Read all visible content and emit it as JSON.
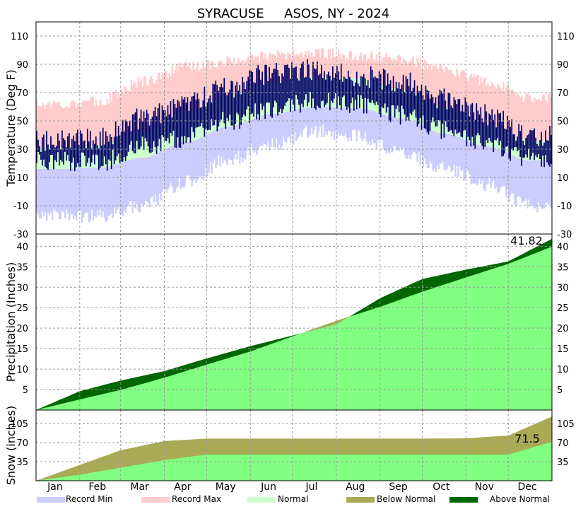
{
  "chart_data": {
    "type": "area",
    "title": "SYRACUSE     ASOS, NY - 2024",
    "months": [
      "Jan",
      "Feb",
      "Mar",
      "Apr",
      "May",
      "Jun",
      "Jul",
      "Aug",
      "Sep",
      "Oct",
      "Nov",
      "Dec"
    ],
    "legend": [
      {
        "label": "Record Min",
        "color": "#ccccff"
      },
      {
        "label": "Record Max",
        "color": "#ffcccc"
      },
      {
        "label": "Normal",
        "color": "#ccffcc"
      },
      {
        "label": "Below Normal",
        "color": "#aaaa55"
      },
      {
        "label": "Above Normal",
        "color": "#006600"
      }
    ],
    "colors": {
      "record_min": "#ccccff",
      "record_max": "#ffcccc",
      "normal": "#ccffcc",
      "observed": "#000066",
      "precip_normal": "#80ff80",
      "below_normal": "#aaaa55",
      "above_normal": "#006600"
    },
    "panels": [
      {
        "id": "temperature",
        "ylabel": "Temperature (Deg F)",
        "ylim": [
          -30,
          120
        ],
        "ticks": [
          -30,
          -10,
          10,
          30,
          50,
          70,
          90,
          110
        ],
        "tick_labels": [
          "-30",
          "-10",
          "10",
          "30",
          "50",
          "70",
          "90",
          "110"
        ],
        "series": [
          {
            "name": "Record Min",
            "monthly": [
              -12,
              -12,
              -5,
              12,
              28,
              38,
              48,
              44,
              32,
              22,
              10,
              -5
            ]
          },
          {
            "name": "Record Max",
            "monthly": [
              62,
              64,
              78,
              88,
              92,
              96,
              98,
              96,
              94,
              86,
              78,
              66
            ]
          },
          {
            "name": "Normal",
            "monthly_low": [
              16,
              17,
              24,
              35,
              46,
              55,
              60,
              59,
              52,
              41,
              32,
              22
            ],
            "monthly_high": [
              31,
              33,
              42,
              56,
              68,
              77,
              81,
              80,
              72,
              60,
              47,
              36
            ]
          },
          {
            "monthly_low": [
              22,
              20,
              32,
              38,
              50,
              58,
              64,
              62,
              54,
              44,
              34,
              24
            ],
            "monthly_high": [
              36,
              38,
              52,
              62,
              74,
              84,
              86,
              82,
              78,
              66,
              54,
              40
            ]
          }
        ]
      },
      {
        "id": "precipitation",
        "ylabel": "Precipitation (Inches)",
        "ylim": [
          0,
          43
        ],
        "ticks": [
          5,
          10,
          15,
          20,
          25,
          30,
          35,
          40
        ],
        "tick_labels": [
          "5",
          "10",
          "15",
          "20",
          "25",
          "30",
          "35",
          "40"
        ],
        "total_label": "41.82",
        "series": [
          {
            "name": "Normal",
            "cumulative_end_of_month": [
              2.6,
              4.9,
              7.9,
              11.1,
              14.3,
              18.0,
              21.8,
              25.2,
              28.9,
              32.4,
              35.7,
              39.9
            ]
          },
          {
            "cumulative_end_of_month": [
              4.6,
              7.2,
              9.5,
              12.6,
              15.6,
              18.2,
              20.9,
              27.3,
              32.0,
              34.3,
              36.3,
              41.82
            ]
          }
        ]
      },
      {
        "id": "snow",
        "ylabel": "Snow (inches)",
        "ylim": [
          0,
          130
        ],
        "ticks": [
          35,
          70,
          105
        ],
        "tick_labels": [
          "35",
          "70",
          "105"
        ],
        "total_label": "71.5",
        "series": [
          {
            "name": "Normal",
            "cumulative_end_of_month": [
              29,
              56,
              73,
              77.5,
              77.5,
              77.5,
              77.5,
              77.5,
              77.5,
              78,
              83,
              118
            ]
          },
          {
            "cumulative_end_of_month": [
              11,
              24,
              38,
              48,
              48,
              48,
              48,
              48,
              48,
              48,
              48,
              71.5
            ]
          }
        ]
      }
    ]
  }
}
